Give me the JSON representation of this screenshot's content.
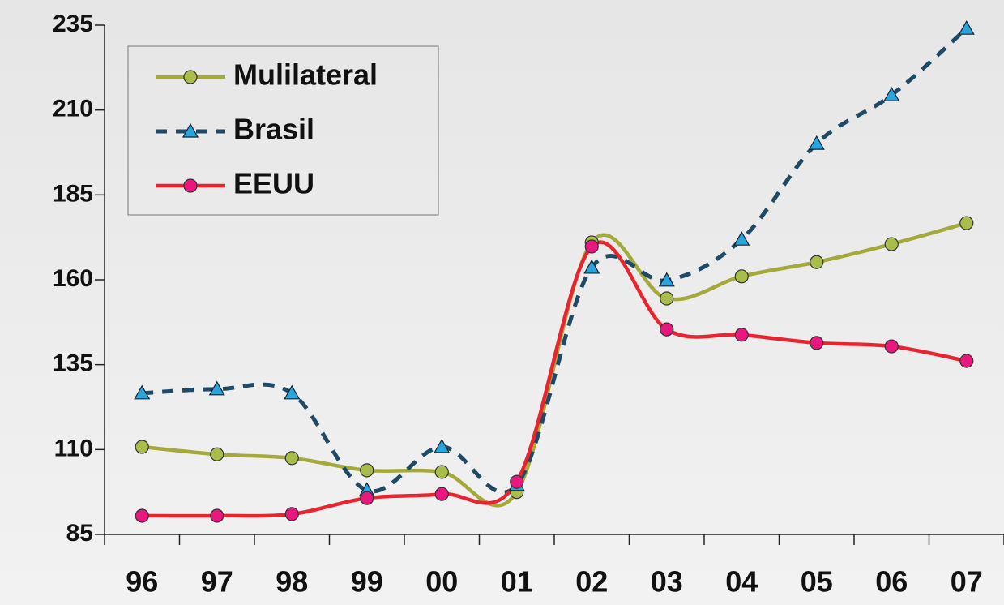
{
  "chart_data": {
    "type": "line",
    "categories": [
      "96",
      "97",
      "98",
      "99",
      "00",
      "01",
      "02",
      "03",
      "04",
      "05",
      "06",
      "07"
    ],
    "series": [
      {
        "name": "Mulilateral",
        "color": "#a3a93a",
        "marker_color": "#a9bd4a",
        "dash": false,
        "marker": "circle",
        "values": [
          110.8,
          108.6,
          107.5,
          103.9,
          103.4,
          97.5,
          171,
          154.5,
          161,
          165.2,
          170.5,
          176.7
        ]
      },
      {
        "name": "Brasil",
        "color": "#1e4a66",
        "marker_color": "#2aa5dc",
        "dash": true,
        "marker": "triangle",
        "values": [
          126.6,
          127.8,
          126.6,
          98,
          110.8,
          99.6,
          163.6,
          159.8,
          171.9,
          200.1,
          214.4,
          234
        ]
      },
      {
        "name": "EEUU",
        "color": "#e8252e",
        "marker_color": "#e9187f",
        "dash": false,
        "marker": "circle",
        "values": [
          90.5,
          90.5,
          91,
          95.7,
          96.9,
          100.5,
          169.8,
          145.4,
          143.8,
          141.4,
          140.4,
          136.1
        ]
      }
    ],
    "ylim": [
      85,
      235
    ],
    "yticks": [
      85,
      110,
      135,
      160,
      185,
      210,
      235
    ],
    "legend": "upper-left",
    "smooth": true
  }
}
